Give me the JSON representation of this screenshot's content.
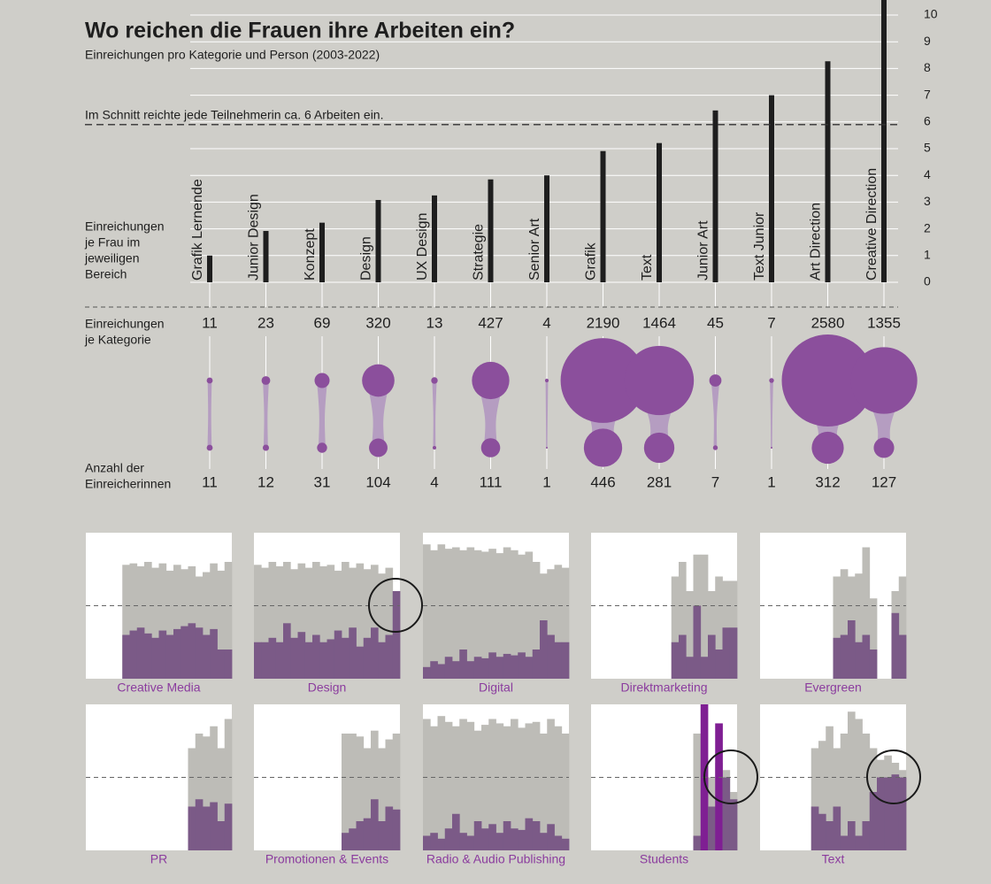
{
  "chart_data": {
    "type": "bar",
    "title": "Wo reichen die Frauen ihre Arbeiten ein?",
    "subtitle": "Einreichungen pro Kategorie und Person (2003-2022)",
    "annotation": "Im Schnitt reichte jede Teilnehmerin ca. 6 Arbeiten ein.",
    "average": 5.9,
    "y_label_lines": [
      "Einreichungen",
      "je Frau im",
      "jeweiligen",
      "Bereich"
    ],
    "categories": [
      "Grafik Lernende",
      "Junior Design",
      "Konzept",
      "Design",
      "UX Design",
      "Strategie",
      "Senior Art",
      "Grafik",
      "Text",
      "Junior Art",
      "Text Junior",
      "Art Direction",
      "Creative Direction"
    ],
    "values": [
      1.0,
      1.92,
      2.23,
      3.08,
      3.25,
      3.85,
      4.0,
      4.91,
      5.21,
      6.43,
      7.0,
      8.27,
      10.67
    ],
    "ylim": [
      0,
      10.6
    ],
    "yticks": [
      0,
      1,
      2,
      3,
      4,
      5,
      6,
      7,
      8,
      9,
      10
    ],
    "color": "#1e1e1e",
    "grid": true,
    "bubbles": {
      "top_label_lines": [
        "Einreichungen",
        "je Kategorie"
      ],
      "submissions": [
        11,
        23,
        69,
        320,
        13,
        427,
        4,
        2190,
        1464,
        45,
        7,
        2580,
        1355
      ],
      "bottom_label_lines": [
        "Anzahl der",
        "Einreicherinnen"
      ],
      "submitters": [
        11,
        12,
        31,
        104,
        4,
        111,
        1,
        446,
        281,
        7,
        1,
        312,
        127
      ],
      "color": "#8b4f9c",
      "link_color": "#b59dc1"
    },
    "small_multiples": {
      "ylim": [
        0,
        100
      ],
      "reference": 50,
      "total_color": "#bdbcb7",
      "women_color": "#7b5a87",
      "highlight_color": "#7f1f93",
      "label_color": "#8b3c9e",
      "panels": [
        {
          "name": "Creative Media",
          "total": [
            null,
            null,
            null,
            null,
            null,
            78,
            79,
            77,
            80,
            76,
            79,
            74,
            78,
            75,
            77,
            70,
            73,
            79,
            74,
            80
          ],
          "women": [
            null,
            null,
            null,
            null,
            null,
            30,
            33,
            35,
            31,
            28,
            33,
            30,
            34,
            36,
            38,
            35,
            30,
            34,
            20,
            20
          ]
        },
        {
          "name": "Design",
          "total": [
            78,
            76,
            80,
            77,
            80,
            75,
            79,
            76,
            80,
            77,
            78,
            74,
            80,
            76,
            79,
            75,
            78,
            72,
            76,
            60
          ],
          "women": [
            25,
            25,
            28,
            25,
            38,
            28,
            32,
            25,
            30,
            25,
            27,
            33,
            28,
            35,
            22,
            28,
            35,
            25,
            30,
            60
          ]
        },
        {
          "name": "Digital",
          "total": [
            92,
            88,
            92,
            89,
            90,
            88,
            90,
            88,
            87,
            89,
            86,
            90,
            88,
            85,
            87,
            80,
            72,
            75,
            78,
            76
          ],
          "women": [
            8,
            12,
            10,
            15,
            12,
            20,
            12,
            15,
            14,
            18,
            15,
            17,
            16,
            18,
            15,
            20,
            40,
            30,
            25,
            25
          ]
        },
        {
          "name": "Direktmarketing",
          "total": [
            null,
            null,
            null,
            null,
            null,
            null,
            null,
            null,
            null,
            null,
            null,
            70,
            80,
            60,
            85,
            85,
            60,
            70,
            67,
            67
          ],
          "women": [
            null,
            null,
            null,
            null,
            null,
            null,
            null,
            null,
            null,
            null,
            null,
            25,
            30,
            15,
            50,
            15,
            30,
            20,
            35,
            35
          ]
        },
        {
          "name": "Evergreen",
          "total": [
            null,
            null,
            null,
            null,
            null,
            null,
            null,
            null,
            null,
            null,
            70,
            75,
            70,
            72,
            90,
            55,
            null,
            null,
            60,
            70
          ],
          "women": [
            null,
            null,
            null,
            null,
            null,
            null,
            null,
            null,
            null,
            null,
            28,
            30,
            40,
            25,
            30,
            20,
            null,
            null,
            45,
            30
          ]
        },
        {
          "name": "PR",
          "total": [
            null,
            null,
            null,
            null,
            null,
            null,
            null,
            null,
            null,
            null,
            null,
            null,
            null,
            null,
            70,
            80,
            78,
            85,
            70,
            90
          ],
          "women": [
            null,
            null,
            null,
            null,
            null,
            null,
            null,
            null,
            null,
            null,
            null,
            null,
            null,
            null,
            30,
            35,
            30,
            33,
            20,
            32
          ]
        },
        {
          "name": "Promotionen & Events",
          "total": [
            null,
            null,
            null,
            null,
            null,
            null,
            null,
            null,
            null,
            null,
            null,
            null,
            80,
            80,
            78,
            70,
            82,
            70,
            76,
            80
          ],
          "women": [
            null,
            null,
            null,
            null,
            null,
            null,
            null,
            null,
            null,
            null,
            null,
            null,
            12,
            15,
            20,
            22,
            35,
            20,
            30,
            28
          ]
        },
        {
          "name": "Radio & Audio Publishing",
          "total": [
            90,
            85,
            92,
            88,
            85,
            90,
            88,
            82,
            86,
            90,
            87,
            85,
            90,
            84,
            87,
            88,
            80,
            90,
            85,
            80
          ],
          "women": [
            10,
            12,
            8,
            15,
            25,
            12,
            10,
            20,
            15,
            18,
            12,
            20,
            15,
            14,
            22,
            20,
            12,
            18,
            10,
            8
          ]
        },
        {
          "name": "Students",
          "total": [
            null,
            null,
            null,
            null,
            null,
            null,
            null,
            null,
            null,
            null,
            null,
            null,
            null,
            null,
            80,
            45,
            50,
            60,
            55,
            40
          ],
          "women": [
            null,
            null,
            null,
            null,
            null,
            null,
            null,
            null,
            null,
            null,
            null,
            null,
            null,
            null,
            10,
            100,
            30,
            87,
            50,
            35
          ]
        },
        {
          "name": "Text",
          "total": [
            null,
            null,
            null,
            null,
            null,
            null,
            null,
            70,
            75,
            85,
            70,
            80,
            95,
            90,
            80,
            70,
            62,
            65,
            60,
            55
          ],
          "women": [
            null,
            null,
            null,
            null,
            null,
            null,
            null,
            30,
            25,
            20,
            30,
            10,
            20,
            10,
            20,
            40,
            50,
            50,
            52,
            50
          ]
        }
      ]
    }
  }
}
